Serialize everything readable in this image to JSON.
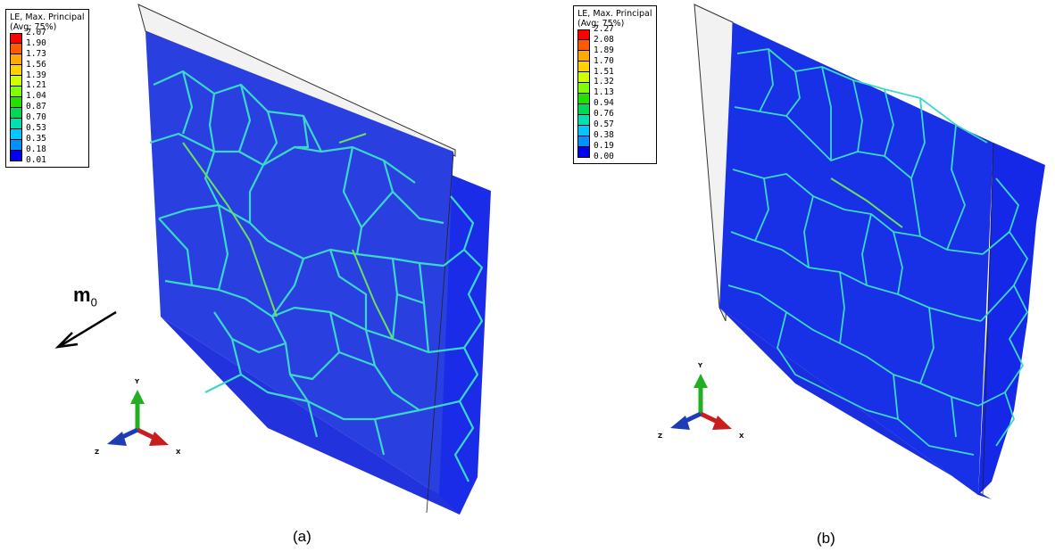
{
  "panels": [
    {
      "id": "a",
      "caption": "(a)",
      "legend": {
        "title_line1": "LE, Max. Principal",
        "title_line2": "(Avg: 75%)",
        "values": [
          "2.07",
          "1.90",
          "1.73",
          "1.56",
          "1.39",
          "1.21",
          "1.04",
          "0.87",
          "0.70",
          "0.53",
          "0.35",
          "0.18",
          "0.01"
        ]
      },
      "triad": {
        "x": "X",
        "y": "Y",
        "z": "Z"
      },
      "arrow_label": {
        "main": "m",
        "sub": "0"
      }
    },
    {
      "id": "b",
      "caption": "(b)",
      "legend": {
        "title_line1": "LE, Max. Principal",
        "title_line2": "(Avg: 75%)",
        "values": [
          "2.27",
          "2.08",
          "1.89",
          "1.70",
          "1.51",
          "1.32",
          "1.13",
          "0.94",
          "0.76",
          "0.57",
          "0.38",
          "0.19",
          "0.00"
        ]
      },
      "triad": {
        "x": "X",
        "y": "Y",
        "z": "Z"
      }
    }
  ],
  "colors": {
    "contour": [
      "#ff0000",
      "#ff5a00",
      "#ffaa00",
      "#ffd200",
      "#d0ff00",
      "#80ff00",
      "#22e000",
      "#00d85a",
      "#00e0b0",
      "#00c8ff",
      "#0090ff",
      "#0042ff",
      "#0000ee"
    ],
    "plate_a": "#2a3fe0",
    "plate_b": "#1830e6",
    "boundary": "#3ad8c8",
    "boundary_hot": "#6ae060",
    "triad_x": "#c81e1e",
    "triad_y": "#22b022",
    "triad_z": "#1e3cb4"
  }
}
